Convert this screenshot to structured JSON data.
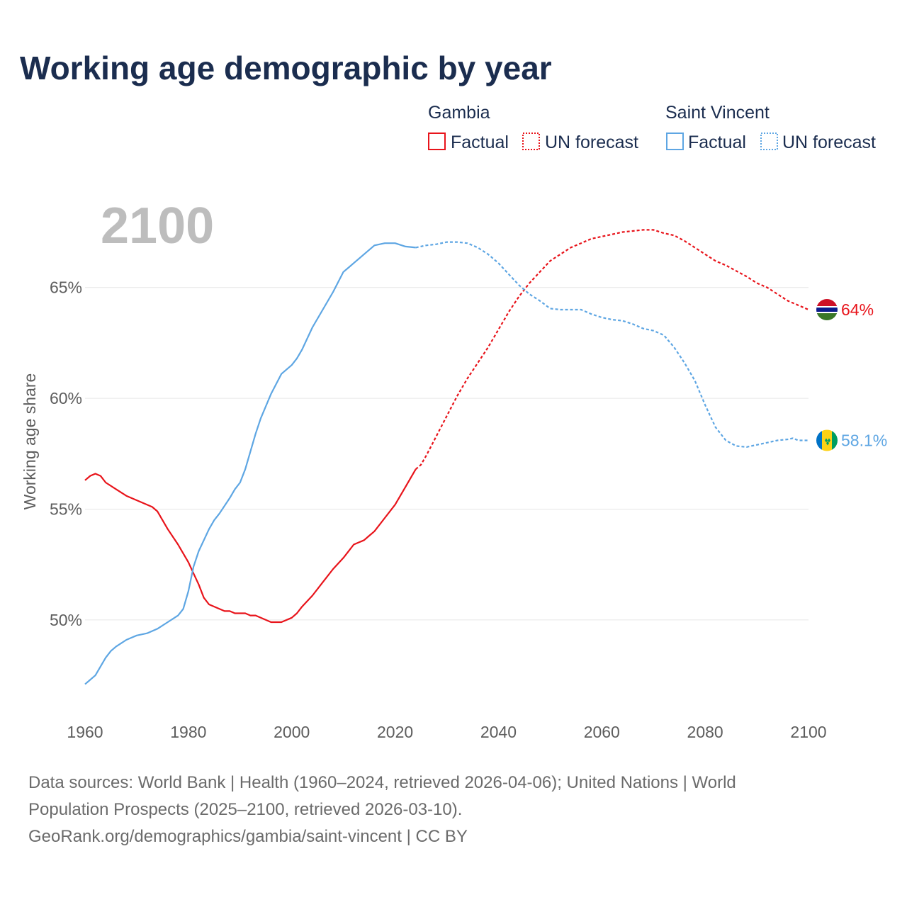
{
  "title": "Working age demographic by year",
  "year_indicator": "2100",
  "legend": {
    "groups": [
      {
        "name": "Gambia",
        "color": "#e8141b",
        "factual_label": "Factual",
        "forecast_label": "UN forecast"
      },
      {
        "name": "Saint Vincent",
        "color": "#5ea6e3",
        "factual_label": "Factual",
        "forecast_label": "UN forecast"
      }
    ]
  },
  "chart_data": {
    "type": "line",
    "title": "Working age demographic by year",
    "xlabel": "",
    "ylabel": "Working age share",
    "xlim": [
      1960,
      2100
    ],
    "ylim": [
      46.0,
      68.7
    ],
    "x_ticks": [
      1960,
      1980,
      2000,
      2020,
      2040,
      2060,
      2080,
      2100
    ],
    "y_ticks": [
      50,
      55,
      60,
      65
    ],
    "y_tick_labels": [
      "50%",
      "55%",
      "60%",
      "65%"
    ],
    "factual_range": "1960–2024",
    "forecast_range": "2025–2100",
    "series": [
      {
        "name": "Gambia",
        "color": "#e8141b",
        "end_label": "64%",
        "flag": "gambia-flag",
        "factual": {
          "x": [
            1960,
            1961,
            1962,
            1963,
            1964,
            1966,
            1968,
            1970,
            1971,
            1973,
            1974,
            1976,
            1978,
            1979,
            1980,
            1981,
            1982,
            1983,
            1984,
            1986,
            1987,
            1988,
            1989,
            1990,
            1991,
            1992,
            1993,
            1995,
            1996,
            1998,
            2000,
            2001,
            2002,
            2004,
            2006,
            2008,
            2010,
            2011,
            2012,
            2014,
            2015,
            2016,
            2018,
            2020,
            2022,
            2024
          ],
          "y": [
            56.3,
            56.5,
            56.6,
            56.5,
            56.2,
            55.9,
            55.6,
            55.4,
            55.3,
            55.1,
            54.9,
            54.1,
            53.4,
            53.0,
            52.6,
            52.1,
            51.6,
            51.0,
            50.7,
            50.5,
            50.4,
            50.4,
            50.3,
            50.3,
            50.3,
            50.2,
            50.2,
            50.0,
            49.9,
            49.9,
            50.1,
            50.3,
            50.6,
            51.1,
            51.7,
            52.3,
            52.8,
            53.1,
            53.4,
            53.6,
            53.8,
            54.0,
            54.6,
            55.2,
            56.0,
            56.8
          ]
        },
        "forecast": {
          "x": [
            2024,
            2025,
            2026,
            2028,
            2030,
            2032,
            2034,
            2036,
            2038,
            2040,
            2042,
            2044,
            2046,
            2048,
            2050,
            2052,
            2054,
            2056,
            2058,
            2060,
            2062,
            2064,
            2066,
            2068,
            2070,
            2072,
            2074,
            2076,
            2078,
            2080,
            2082,
            2084,
            2086,
            2088,
            2090,
            2092,
            2094,
            2096,
            2098,
            2100
          ],
          "y": [
            56.8,
            57.0,
            57.4,
            58.3,
            59.2,
            60.1,
            60.9,
            61.6,
            62.3,
            63.1,
            63.9,
            64.6,
            65.2,
            65.7,
            66.2,
            66.5,
            66.8,
            67.0,
            67.2,
            67.3,
            67.4,
            67.5,
            67.55,
            67.6,
            67.6,
            67.45,
            67.35,
            67.1,
            66.8,
            66.5,
            66.2,
            66.0,
            65.75,
            65.5,
            65.2,
            65.0,
            64.7,
            64.4,
            64.2,
            64.0
          ]
        }
      },
      {
        "name": "Saint Vincent",
        "color": "#5ea6e3",
        "end_label": "58.1%",
        "flag": "saint-vincent-flag",
        "factual": {
          "x": [
            1960,
            1962,
            1963,
            1964,
            1965,
            1966,
            1968,
            1969,
            1970,
            1972,
            1974,
            1976,
            1978,
            1979,
            1980,
            1981,
            1982,
            1983,
            1984,
            1985,
            1986,
            1988,
            1989,
            1990,
            1991,
            1992,
            1993,
            1994,
            1996,
            1998,
            2000,
            2001,
            2002,
            2004,
            2006,
            2008,
            2010,
            2011,
            2012,
            2014,
            2016,
            2018,
            2020,
            2022,
            2024
          ],
          "y": [
            47.1,
            47.5,
            47.9,
            48.3,
            48.6,
            48.8,
            49.1,
            49.2,
            49.3,
            49.4,
            49.6,
            49.9,
            50.2,
            50.5,
            51.3,
            52.4,
            53.1,
            53.6,
            54.1,
            54.5,
            54.8,
            55.5,
            55.9,
            56.2,
            56.8,
            57.6,
            58.4,
            59.1,
            60.2,
            61.1,
            61.5,
            61.8,
            62.2,
            63.2,
            64.0,
            64.8,
            65.7,
            65.9,
            66.1,
            66.5,
            66.9,
            67.0,
            67.0,
            66.85,
            66.8
          ]
        },
        "forecast": {
          "x": [
            2024,
            2026,
            2028,
            2030,
            2032,
            2034,
            2036,
            2038,
            2040,
            2042,
            2044,
            2046,
            2048,
            2050,
            2052,
            2054,
            2056,
            2058,
            2060,
            2062,
            2064,
            2066,
            2068,
            2070,
            2072,
            2074,
            2076,
            2078,
            2080,
            2082,
            2084,
            2086,
            2088,
            2090,
            2092,
            2094,
            2096,
            2097,
            2098,
            2100
          ],
          "y": [
            66.8,
            66.9,
            66.95,
            67.05,
            67.05,
            67.0,
            66.8,
            66.5,
            66.1,
            65.6,
            65.1,
            64.7,
            64.4,
            64.05,
            64.0,
            64.0,
            64.0,
            63.8,
            63.65,
            63.55,
            63.5,
            63.35,
            63.15,
            63.05,
            62.85,
            62.3,
            61.6,
            60.8,
            59.7,
            58.7,
            58.1,
            57.85,
            57.8,
            57.9,
            58.0,
            58.1,
            58.15,
            58.2,
            58.1,
            58.1
          ]
        }
      }
    ]
  },
  "footer": {
    "line1": "Data sources: World Bank | Health (1960–2024, retrieved 2026-04-06); United Nations | World",
    "line2": "Population Prospects (2025–2100, retrieved 2026-03-10).",
    "line3": "GeoRank.org/demographics/gambia/saint-vincent | CC BY"
  }
}
